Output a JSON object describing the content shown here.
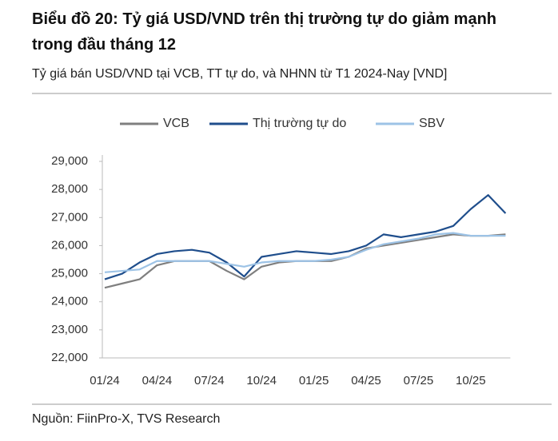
{
  "chart_data": {
    "type": "line",
    "title": "Biểu đồ 20: Tỷ giá USD/VND trên thị trường tự do giảm mạnh trong đầu tháng 12",
    "subtitle": "Tỷ giá bán USD/VND tại VCB, TT tự do, và NHNN từ T1 2024-Nay [VND]",
    "source": "Nguồn: FiinPro-X, TVS Research",
    "categories": [
      "01/24",
      null,
      null,
      "04/24",
      null,
      null,
      "07/24",
      null,
      null,
      "10/24",
      null,
      null,
      "01/25",
      null,
      null,
      "04/25",
      null,
      null,
      "07/25",
      null,
      null,
      "10/25",
      null,
      null
    ],
    "series": [
      {
        "name": "VCB",
        "color": "#7f7f7f",
        "values": [
          24500,
          24650,
          24800,
          25300,
          25450,
          25450,
          25450,
          25100,
          24800,
          25250,
          25400,
          25450,
          25450,
          25450,
          25600,
          25900,
          26000,
          26100,
          26200,
          26300,
          26400,
          26350,
          26350,
          26400
        ]
      },
      {
        "name": "Thị trường tự do",
        "color": "#1f4e8c",
        "values": [
          24800,
          25000,
          25400,
          25700,
          25800,
          25850,
          25750,
          25400,
          24900,
          25600,
          25700,
          25800,
          25750,
          25700,
          25800,
          26000,
          26400,
          26300,
          26400,
          26500,
          26700,
          27300,
          27800,
          27150
        ]
      },
      {
        "name": "SBV",
        "color": "#9dc3e6",
        "values": [
          25050,
          25100,
          25150,
          25450,
          25450,
          25450,
          25450,
          25350,
          25250,
          25400,
          25450,
          25450,
          25450,
          25500,
          25600,
          25850,
          26050,
          26150,
          26250,
          26400,
          26450,
          26350,
          26350,
          26350
        ]
      }
    ],
    "ylim": [
      22000,
      29000
    ],
    "yticks": [
      {
        "value": 22000,
        "label": "22,000"
      },
      {
        "value": 23000,
        "label": "23,000"
      },
      {
        "value": 24000,
        "label": "24,000"
      },
      {
        "value": 25000,
        "label": "25,000"
      },
      {
        "value": 26000,
        "label": "26,000"
      },
      {
        "value": 27000,
        "label": "27,000"
      },
      {
        "value": 28000,
        "label": "28,000"
      },
      {
        "value": 29000,
        "label": "29,000"
      }
    ],
    "legend": "top"
  }
}
